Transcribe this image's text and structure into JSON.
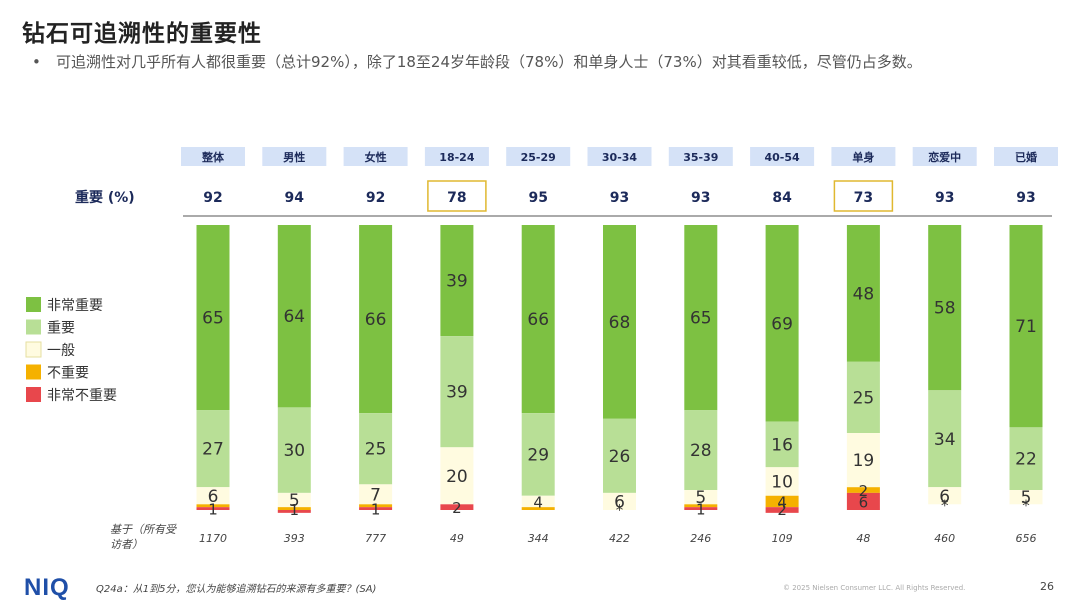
{
  "title": "钻石可追溯性的重要性",
  "bullet_marker": "•",
  "bullet": "可追溯性对几乎所有人都很重要（总计92%），除了18至24岁年龄段（78%）和单身人士（73%）对其看重较低，尽管仍占多数。",
  "important_label": "重要 (%)",
  "base_label": "基于（所有受访者）",
  "footer": {
    "logo": "NIQ",
    "question": "Q24a：从1到5分，您认为能够追溯钻石的来源有多重要？(SA)",
    "copyright": "© 2025 Nielsen Consumer LLC. All Rights Reserved.",
    "page": "26"
  },
  "colors": {
    "very_important": "#7dc142",
    "important": "#b8df96",
    "neutral": "#fffbe0",
    "not_important": "#f5b100",
    "very_not_important": "#e8474c",
    "header_bg": "#d5e2f7",
    "highlight_border": "#e0b830"
  },
  "chart_data": {
    "type": "bar",
    "stacked": true,
    "orientation": "vertical",
    "categories": [
      "整体",
      "男性",
      "女性",
      "18-24",
      "25-29",
      "30-34",
      "35-39",
      "40-54",
      "单身",
      "恋爱中",
      "已婚"
    ],
    "important_totals": [
      92,
      94,
      92,
      78,
      95,
      93,
      93,
      84,
      73,
      93,
      93
    ],
    "highlighted": [
      "18-24",
      "单身"
    ],
    "bases": [
      1170,
      393,
      777,
      49,
      344,
      422,
      246,
      109,
      48,
      460,
      656
    ],
    "series": [
      {
        "name": "非常重要",
        "key": "very_important",
        "values": [
          65,
          64,
          66,
          39,
          66,
          68,
          65,
          69,
          48,
          58,
          71
        ]
      },
      {
        "name": "重要",
        "key": "important",
        "values": [
          27,
          30,
          25,
          39,
          29,
          26,
          28,
          16,
          25,
          34,
          22
        ]
      },
      {
        "name": "一般",
        "key": "neutral",
        "values": [
          6,
          5,
          7,
          20,
          4,
          6,
          5,
          10,
          19,
          6,
          5
        ]
      },
      {
        "name": "不重要",
        "key": "not_important",
        "values": [
          1,
          1,
          1,
          0,
          1,
          0,
          1,
          4,
          2,
          0,
          0
        ]
      },
      {
        "name": "非常不重要",
        "key": "very_not_important",
        "values": [
          1,
          1,
          1,
          2,
          0,
          0,
          1,
          2,
          6,
          0,
          0
        ]
      }
    ],
    "segment_labels": [
      [
        "65",
        "27",
        "6",
        "",
        "1"
      ],
      [
        "64",
        "30",
        "5",
        "",
        "1"
      ],
      [
        "66",
        "25",
        "7",
        "",
        "1"
      ],
      [
        "39",
        "39",
        "20",
        "",
        "2"
      ],
      [
        "66",
        "29",
        "4",
        "",
        ""
      ],
      [
        "68",
        "26",
        "6",
        "",
        "*"
      ],
      [
        "65",
        "28",
        "5",
        "",
        "1"
      ],
      [
        "69",
        "16",
        "10",
        "4",
        "2"
      ],
      [
        "48",
        "25",
        "19",
        "2",
        "6"
      ],
      [
        "58",
        "34",
        "6",
        "",
        "*"
      ],
      [
        "71",
        "22",
        "5",
        "",
        "*"
      ]
    ],
    "legend": [
      "非常重要",
      "重要",
      "一般",
      "不重要",
      "非常不重要"
    ],
    "legend_position": "left",
    "ylim": [
      0,
      100
    ]
  }
}
